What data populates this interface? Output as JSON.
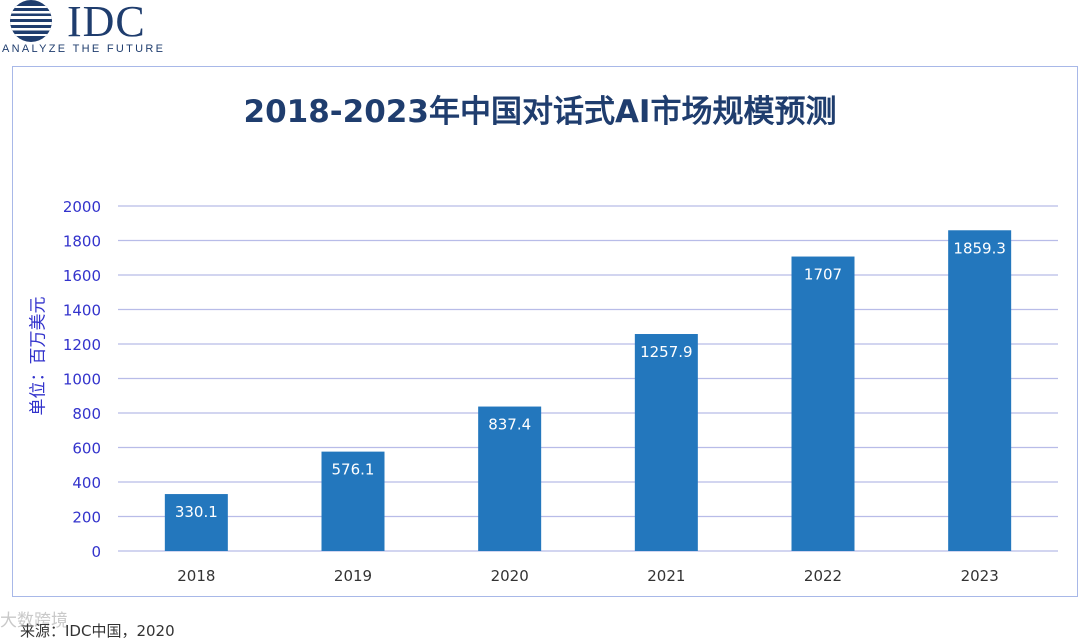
{
  "logo": {
    "name": "IDC",
    "tagline": "ANALYZE THE FUTURE"
  },
  "watermark": "大数跨境",
  "source": "来源：IDC中国，2020",
  "colors": {
    "bar": "#2377bd",
    "grid": "#b8bce8",
    "axis_text": "#3333cc",
    "title": "#1f3d6e"
  },
  "chart_data": {
    "type": "bar",
    "title": "2018-2023年中国对话式AI市场规模预测",
    "ylabel": "单位：百万美元",
    "xlabel": "",
    "categories": [
      "2018",
      "2019",
      "2020",
      "2021",
      "2022",
      "2023"
    ],
    "values": [
      330.1,
      576.1,
      837.4,
      1257.9,
      1707,
      1859.3
    ],
    "value_labels": [
      "330.1",
      "576.1",
      "837.4",
      "1257.9",
      "1707",
      "1859.3"
    ],
    "ylim": [
      0,
      2000
    ],
    "yticks": [
      0,
      200,
      400,
      600,
      800,
      1000,
      1200,
      1400,
      1600,
      1800,
      2000
    ],
    "grid": true,
    "legend": "none"
  }
}
